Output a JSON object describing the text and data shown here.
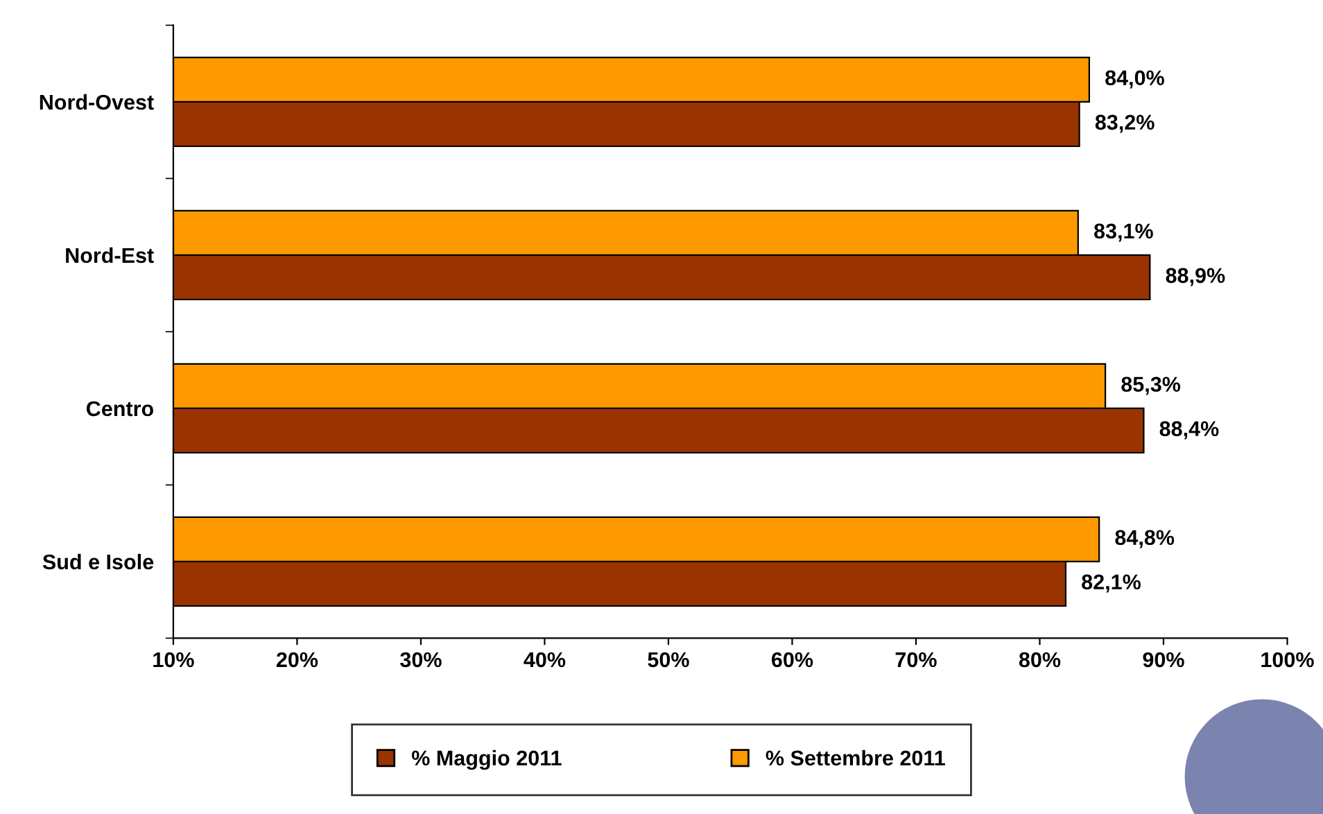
{
  "chart_data": {
    "type": "bar",
    "orientation": "horizontal",
    "categories": [
      "Nord-Ovest",
      "Nord-Est",
      "Centro",
      "Sud e Isole"
    ],
    "series": [
      {
        "name": "% Maggio 2011",
        "color": "#993300",
        "values": [
          83.2,
          88.9,
          88.4,
          82.1
        ],
        "value_labels": [
          "83,2%",
          "88,9%",
          "88,4%",
          "82,1%"
        ]
      },
      {
        "name": "% Settembre 2011",
        "color": "#ff9900",
        "values": [
          84.0,
          83.1,
          85.3,
          84.8
        ],
        "value_labels": [
          "84,0%",
          "83,1%",
          "85,3%",
          "84,8%"
        ]
      }
    ],
    "xlim": [
      10,
      100
    ],
    "xticks": [
      {
        "value": 10,
        "label": "10%"
      },
      {
        "value": 20,
        "label": "20%"
      },
      {
        "value": 30,
        "label": "30%"
      },
      {
        "value": 40,
        "label": "40%"
      },
      {
        "value": 50,
        "label": "50%"
      },
      {
        "value": 60,
        "label": "60%"
      },
      {
        "value": 70,
        "label": "70%"
      },
      {
        "value": 80,
        "label": "80%"
      },
      {
        "value": 90,
        "label": "90%"
      },
      {
        "value": 100,
        "label": "100%"
      }
    ],
    "legend": "bottom",
    "grid": false
  }
}
